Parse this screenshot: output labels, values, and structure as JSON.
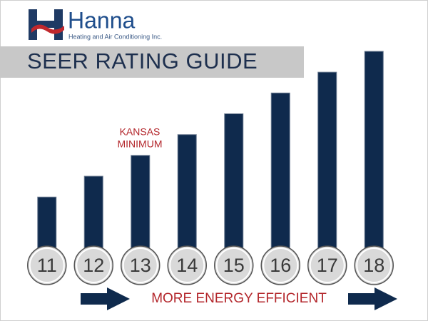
{
  "logo": {
    "name": "Hanna",
    "tagline": "Heating and Air Conditioning Inc."
  },
  "chart_data": {
    "type": "bar",
    "title": "SEER RATING GUIDE",
    "categories": [
      "11",
      "12",
      "13",
      "14",
      "15",
      "16",
      "17",
      "18"
    ],
    "values": [
      11,
      12,
      13,
      14,
      15,
      16,
      17,
      18
    ],
    "color": "#0f2a4d",
    "ylim": [
      8.3,
      18
    ],
    "annotation": [
      "KANSAS",
      "MINIMUM"
    ],
    "footer": "MORE ENERGY EFFICIENT"
  }
}
